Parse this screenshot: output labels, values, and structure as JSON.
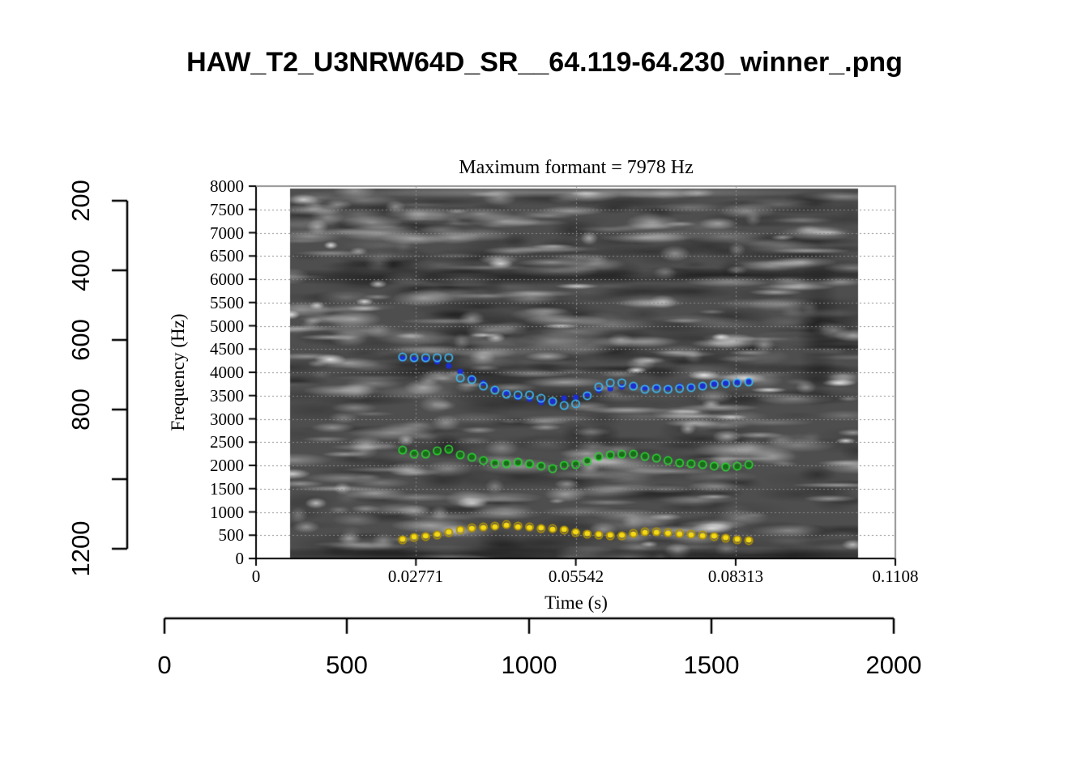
{
  "title": "HAW_T2_U3NRW64D_SR__64.119-64.230_winner_.png",
  "chart_data": {
    "type": "scatter",
    "subtitle": "Maximum formant = 7978 Hz",
    "xlabel": "Time (s)",
    "ylabel": "Frequency (Hz)",
    "xlim": [
      0,
      0.1108
    ],
    "ylim": [
      0,
      8000
    ],
    "x_tick_values": [
      0,
      0.02771,
      0.05542,
      0.08313,
      0.1108
    ],
    "x_tick_labels": [
      "0",
      "0.02771",
      "0.05542",
      "0.08313",
      "0.1108"
    ],
    "y_tick_values": [
      0,
      500,
      1000,
      1500,
      2000,
      2500,
      3000,
      3500,
      4000,
      4500,
      5000,
      5500,
      6000,
      6500,
      7000,
      7500,
      8000
    ],
    "y_tick_labels": [
      "0",
      "500",
      "1000",
      "1500",
      "2000",
      "2500",
      "3000",
      "3500",
      "4000",
      "4500",
      "5000",
      "5500",
      "6000",
      "6500",
      "7000",
      "7500",
      "8000"
    ],
    "grid": "dotted horizontal every 500 Hz, dotted vertical at interior time ticks",
    "legend": "none",
    "background": "grayscale speech spectrogram (noise texture), image spans ~0.006-0.104 s",
    "spectrogram_time_extent_s": [
      0.006,
      0.104
    ],
    "times_s": [
      0.0254,
      0.0274,
      0.0294,
      0.0314,
      0.0334,
      0.0354,
      0.0374,
      0.0394,
      0.0414,
      0.0434,
      0.0454,
      0.0474,
      0.0494,
      0.0514,
      0.0534,
      0.0554,
      0.0574,
      0.0594,
      0.0614,
      0.0634,
      0.0654,
      0.0674,
      0.0694,
      0.0714,
      0.0734,
      0.0754,
      0.0774,
      0.0794,
      0.0814,
      0.0834,
      0.0854
    ],
    "series": [
      {
        "name": "upper-formant-winner",
        "marker": "filled-dot",
        "color": "#1c2dd2",
        "frequencies_hz": [
          4296,
          4278,
          4278,
          4226,
          4139,
          4017,
          3878,
          3774,
          3635,
          3565,
          3461,
          3426,
          3357,
          3374,
          3443,
          3461,
          3530,
          3617,
          3652,
          3687,
          3704,
          3670,
          3687,
          3670,
          3704,
          3687,
          3704,
          3757,
          3774,
          3791,
          3809
        ]
      },
      {
        "name": "upper-formant-candidate",
        "marker": "open-circle",
        "color": "#3eb6ef",
        "frequencies_hz": [
          4330,
          4313,
          4313,
          4313,
          4313,
          3878,
          3843,
          3704,
          3617,
          3530,
          3513,
          3513,
          3443,
          3374,
          3287,
          3322,
          3496,
          3687,
          3774,
          3774,
          3704,
          3635,
          3652,
          3635,
          3652,
          3670,
          3704,
          3739,
          3757,
          3774,
          3791
        ]
      },
      {
        "name": "middle-formant-winner",
        "marker": "filled-dot",
        "color": "#156f15",
        "frequencies_hz": [
          2313,
          2278,
          2261,
          2296,
          2313,
          2209,
          2191,
          2139,
          2070,
          2052,
          2052,
          2017,
          2000,
          1965,
          2035,
          2052,
          2104,
          2174,
          2209,
          2226,
          2261,
          2209,
          2174,
          2122,
          2070,
          2052,
          2035,
          2000,
          1983,
          1965,
          2000
        ]
      },
      {
        "name": "middle-formant-candidate",
        "marker": "open-circle",
        "color": "#2ecc35",
        "frequencies_hz": [
          2330,
          2243,
          2243,
          2313,
          2348,
          2226,
          2174,
          2104,
          2035,
          2035,
          2070,
          2035,
          1983,
          1930,
          2000,
          2017,
          2087,
          2191,
          2226,
          2243,
          2243,
          2191,
          2156,
          2104,
          2052,
          2035,
          2017,
          1983,
          1965,
          1983,
          2017
        ]
      },
      {
        "name": "lower-formant-winner",
        "marker": "filled-dot",
        "color": "#f4d916",
        "frequencies_hz": [
          417,
          470,
          487,
          522,
          574,
          626,
          643,
          661,
          678,
          713,
          678,
          661,
          661,
          626,
          626,
          574,
          539,
          522,
          504,
          504,
          522,
          556,
          556,
          539,
          522,
          504,
          487,
          487,
          452,
          417,
          400
        ]
      },
      {
        "name": "lower-formant-candidate",
        "marker": "open-circle",
        "color": "#b09208",
        "frequencies_hz": [
          400,
          452,
          470,
          504,
          556,
          609,
          661,
          678,
          696,
          730,
          696,
          678,
          643,
          643,
          609,
          556,
          522,
          504,
          487,
          487,
          539,
          574,
          574,
          556,
          539,
          522,
          504,
          470,
          435,
          400,
          383
        ]
      }
    ]
  },
  "outer_axes": {
    "left": {
      "tick_labels": [
        "200",
        "400",
        "600",
        "800",
        "",
        "1200"
      ]
    },
    "bottom": {
      "tick_labels": [
        "0",
        "500",
        "1000",
        "1500",
        "2000"
      ]
    }
  },
  "colors": {
    "axis": "#000000",
    "plot_box_top_right": "#909090",
    "gridline": "#8a8a8a",
    "spectrogram_base": "#4e4e4e"
  }
}
